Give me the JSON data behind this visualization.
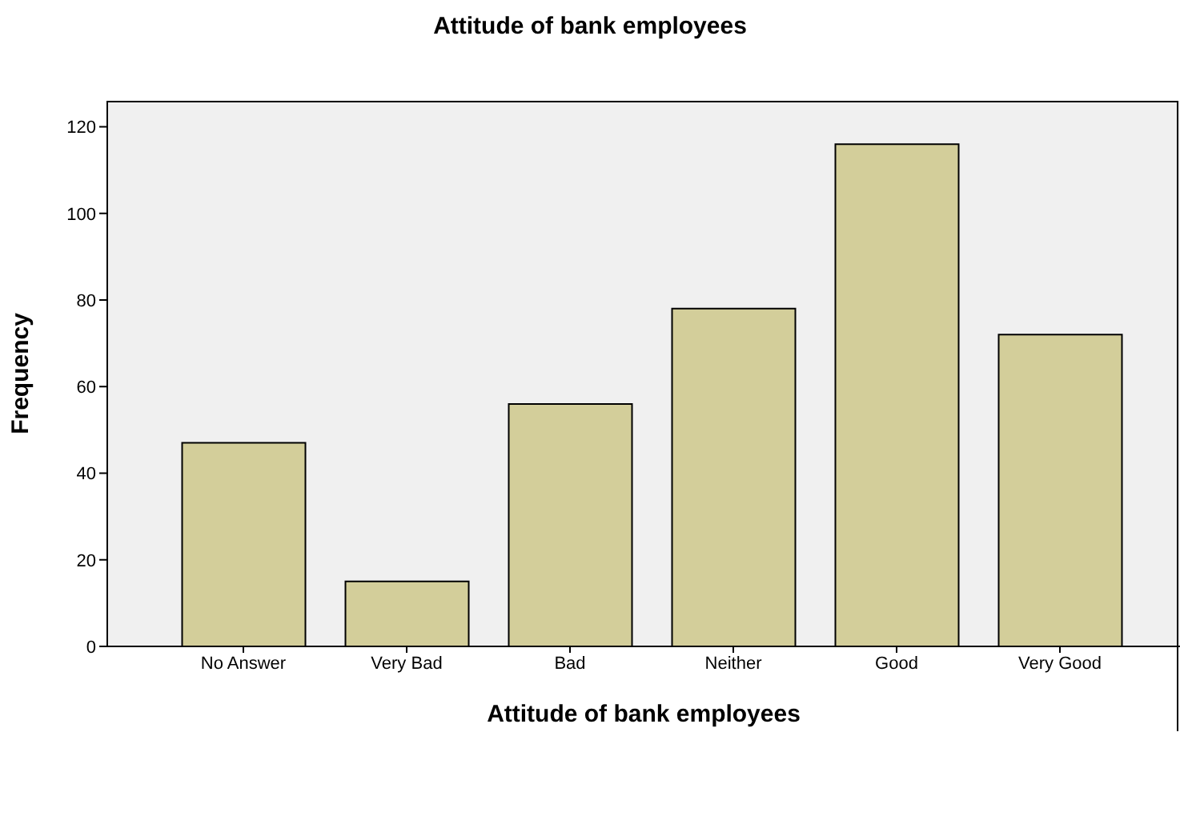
{
  "chart_data": {
    "type": "bar",
    "title": "Attitude of bank employees",
    "xlabel": "Attitude of bank employees",
    "ylabel": "Frequency",
    "categories": [
      "No Answer",
      "Very Bad",
      "Bad",
      "Neither",
      "Good",
      "Very Good"
    ],
    "values": [
      47,
      15,
      56,
      78,
      116,
      72
    ],
    "color": "#d3ce9a",
    "ylim": [
      0,
      126
    ],
    "yticks": [
      0,
      20,
      40,
      60,
      80,
      100,
      120
    ],
    "grid": false,
    "legend": false
  }
}
